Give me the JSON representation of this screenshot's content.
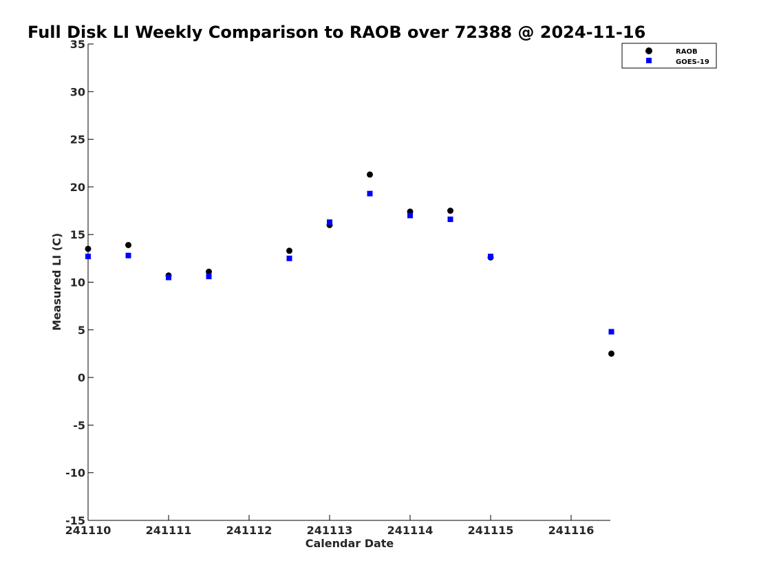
{
  "chart_data": {
    "type": "scatter",
    "title": "Full Disk LI Weekly Comparison to RAOB over 72388 @ 2024-11-16",
    "xlabel": "Calendar Date",
    "ylabel": "Measured LI (C)",
    "xticks": [
      "241110",
      "241111",
      "241112",
      "241113",
      "241114",
      "241115",
      "241116"
    ],
    "yticks": [
      "35",
      "30",
      "25",
      "20",
      "15",
      "10",
      "5",
      "0",
      "-5",
      "-10",
      "-15"
    ],
    "ylim": [
      -15,
      35
    ],
    "grid": false,
    "legend_position": "top-right",
    "series": [
      {
        "name": "RAOB",
        "marker": "circle",
        "color": "#000000",
        "points": [
          [
            "2024-11-10 00:00",
            13.5
          ],
          [
            "2024-11-10 12:00",
            13.9
          ],
          [
            "2024-11-11 00:00",
            10.7
          ],
          [
            "2024-11-11 12:00",
            11.1
          ],
          [
            "2024-11-12 12:00",
            13.3
          ],
          [
            "2024-11-13 00:00",
            16.0
          ],
          [
            "2024-11-13 12:00",
            21.3
          ],
          [
            "2024-11-14 00:00",
            17.4
          ],
          [
            "2024-11-14 12:00",
            17.5
          ],
          [
            "2024-11-15 00:00",
            12.6
          ],
          [
            "2024-11-16 12:00",
            2.5
          ]
        ]
      },
      {
        "name": "GOES-19",
        "marker": "square",
        "color": "#0000ff",
        "points": [
          [
            "2024-11-10 00:00",
            12.7
          ],
          [
            "2024-11-10 12:00",
            12.8
          ],
          [
            "2024-11-11 00:00",
            10.5
          ],
          [
            "2024-11-11 12:00",
            10.6
          ],
          [
            "2024-11-12 12:00",
            12.5
          ],
          [
            "2024-11-13 00:00",
            16.3
          ],
          [
            "2024-11-13 12:00",
            19.3
          ],
          [
            "2024-11-14 00:00",
            17.0
          ],
          [
            "2024-11-14 12:00",
            16.6
          ],
          [
            "2024-11-15 00:00",
            12.7
          ],
          [
            "2024-11-16 12:00",
            4.8
          ]
        ]
      }
    ]
  }
}
